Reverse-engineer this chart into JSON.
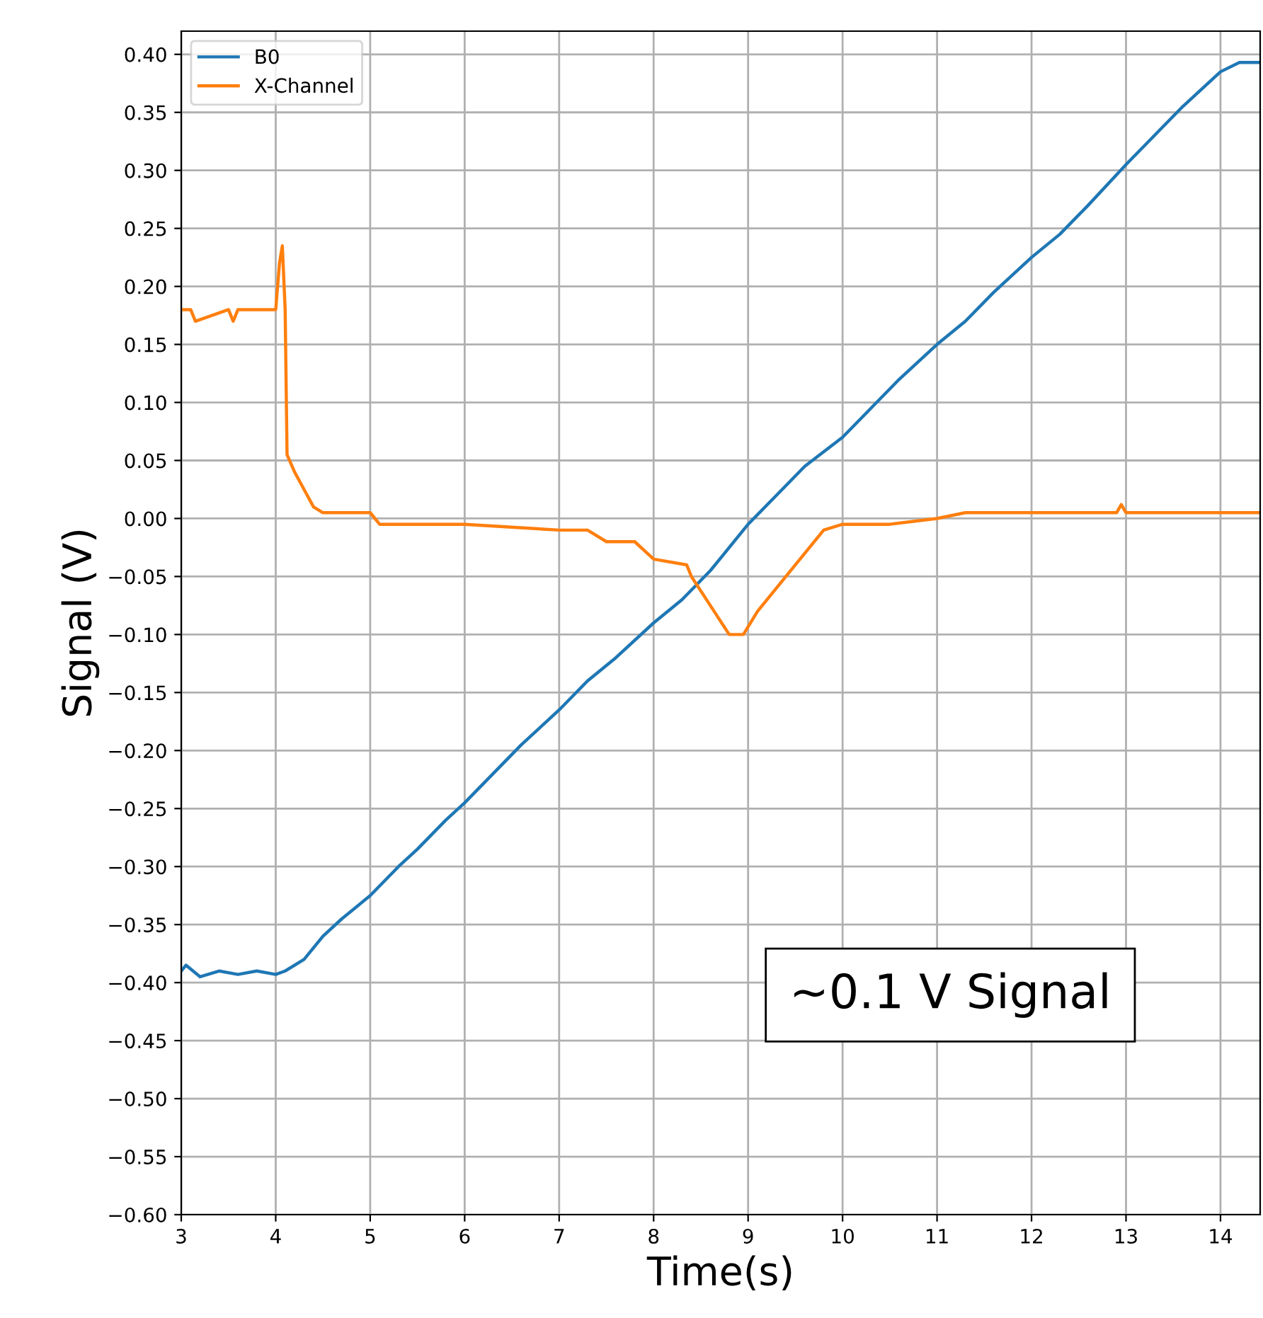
{
  "chart_data": {
    "type": "line",
    "xlabel": "Time(s)",
    "ylabel": "Signal (V)",
    "xlim": [
      3,
      14.42
    ],
    "ylim": [
      -0.6,
      0.42
    ],
    "xticks": [
      3,
      4,
      5,
      6,
      7,
      8,
      9,
      10,
      11,
      12,
      13,
      14
    ],
    "yticks": [
      {
        "value": -0.6,
        "label": "−0.60"
      },
      {
        "value": -0.55,
        "label": "−0.55"
      },
      {
        "value": -0.5,
        "label": "−0.50"
      },
      {
        "value": -0.45,
        "label": "−0.45"
      },
      {
        "value": -0.4,
        "label": "−0.40"
      },
      {
        "value": -0.35,
        "label": "−0.35"
      },
      {
        "value": -0.3,
        "label": "−0.30"
      },
      {
        "value": -0.25,
        "label": "−0.25"
      },
      {
        "value": -0.2,
        "label": "−0.20"
      },
      {
        "value": -0.15,
        "label": "−0.15"
      },
      {
        "value": -0.1,
        "label": "−0.10"
      },
      {
        "value": -0.05,
        "label": "−0.05"
      },
      {
        "value": 0,
        "label": "0.00"
      },
      {
        "value": 0.05,
        "label": "0.05"
      },
      {
        "value": 0.1,
        "label": "0.10"
      },
      {
        "value": 0.15,
        "label": "0.15"
      },
      {
        "value": 0.2,
        "label": "0.20"
      },
      {
        "value": 0.25,
        "label": "0.25"
      },
      {
        "value": 0.3,
        "label": "0.30"
      },
      {
        "value": 0.35,
        "label": "0.35"
      },
      {
        "value": 0.4,
        "label": "0.40"
      }
    ],
    "grid": true,
    "legend": "top left",
    "line_style": "solid",
    "marker": "none",
    "annotations": [
      "~0.1 V Signal"
    ],
    "series": [
      {
        "name": "B0",
        "color": "#1f77b4",
        "x": [
          3,
          3.05,
          3.2,
          3.4,
          3.6,
          3.8,
          4,
          4.1,
          4.3,
          4.5,
          4.7,
          5,
          5.3,
          5.5,
          5.8,
          6,
          6.3,
          6.6,
          7,
          7.3,
          7.6,
          8,
          8.3,
          8.6,
          9,
          9.3,
          9.6,
          10,
          10.3,
          10.6,
          11,
          11.3,
          11.6,
          12,
          12.3,
          12.6,
          13,
          13.3,
          13.6,
          14,
          14.2,
          14.4
        ],
        "values": [
          -0.39,
          -0.385,
          -0.395,
          -0.39,
          -0.393,
          -0.39,
          -0.393,
          -0.39,
          -0.38,
          -0.36,
          -0.345,
          -0.325,
          -0.3,
          -0.285,
          -0.26,
          -0.245,
          -0.22,
          -0.195,
          -0.165,
          -0.14,
          -0.12,
          -0.09,
          -0.07,
          -0.045,
          -0.005,
          0.02,
          0.045,
          0.07,
          0.095,
          0.12,
          0.15,
          0.17,
          0.195,
          0.225,
          0.245,
          0.27,
          0.305,
          0.33,
          0.355,
          0.385,
          0.393,
          0.393
        ]
      },
      {
        "name": "X-Channel",
        "color": "#ff7f0e",
        "x": [
          3,
          3.1,
          3.15,
          3.5,
          3.55,
          3.6,
          3.9,
          4.0,
          4.04,
          4.07,
          4.1,
          4.12,
          4.2,
          4.3,
          4.4,
          4.5,
          5.0,
          5.1,
          5.3,
          6,
          7,
          7.3,
          7.5,
          7.8,
          8.0,
          8.35,
          8.4,
          8.6,
          8.8,
          8.95,
          9.1,
          9.4,
          9.6,
          9.8,
          10,
          10.5,
          11,
          11.3,
          12,
          12.9,
          12.95,
          13,
          14.4
        ],
        "values": [
          0.18,
          0.18,
          0.17,
          0.18,
          0.17,
          0.18,
          0.18,
          0.18,
          0.22,
          0.235,
          0.18,
          0.055,
          0.04,
          0.025,
          0.01,
          0.005,
          0.005,
          -0.005,
          -0.005,
          -0.005,
          -0.01,
          -0.01,
          -0.02,
          -0.02,
          -0.035,
          -0.04,
          -0.05,
          -0.075,
          -0.1,
          -0.1,
          -0.08,
          -0.05,
          -0.03,
          -0.01,
          -0.005,
          -0.005,
          0.0,
          0.005,
          0.005,
          0.005,
          0.012,
          0.005,
          0.005
        ]
      }
    ]
  }
}
